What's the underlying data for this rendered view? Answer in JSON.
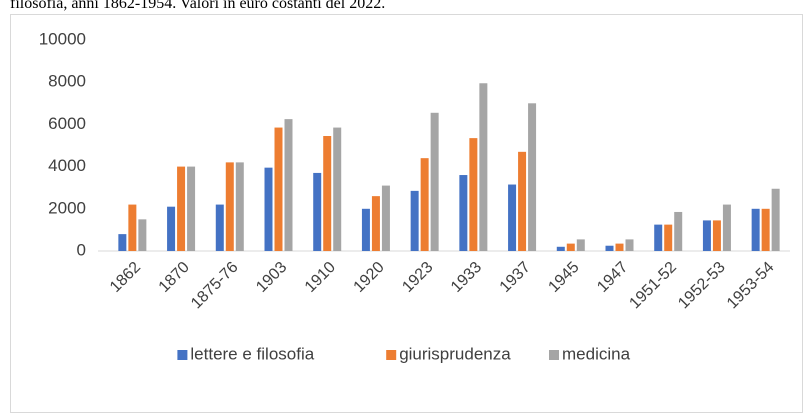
{
  "caption": "filosofia, anni 1862-1954. Valori in euro costanti del 2022.",
  "chart_data": {
    "type": "bar",
    "categories": [
      "1862",
      "1870",
      "1875-76",
      "1903",
      "1910",
      "1920",
      "1923",
      "1933",
      "1937",
      "1945",
      "1947",
      "1951-52",
      "1952-53",
      "1953-54"
    ],
    "series": [
      {
        "name": "lettere e filosofia",
        "color": "#4472c4",
        "values": [
          800,
          2100,
          2200,
          3950,
          3700,
          2000,
          2850,
          3600,
          3150,
          200,
          250,
          1250,
          1450,
          2000
        ]
      },
      {
        "name": "giurisprudenza",
        "color": "#ed7d31",
        "values": [
          2200,
          4000,
          4200,
          5850,
          5450,
          2600,
          4400,
          5350,
          4700,
          350,
          350,
          1250,
          1450,
          2000
        ]
      },
      {
        "name": "medicina",
        "color": "#a5a5a5",
        "values": [
          1500,
          4000,
          4200,
          6250,
          5850,
          3100,
          6550,
          7950,
          7000,
          550,
          550,
          1850,
          2200,
          2950
        ]
      }
    ],
    "ylim": [
      0,
      10000
    ],
    "yticks": [
      0,
      2000,
      4000,
      6000,
      8000,
      10000
    ],
    "grid": false,
    "legend": "bottom"
  }
}
